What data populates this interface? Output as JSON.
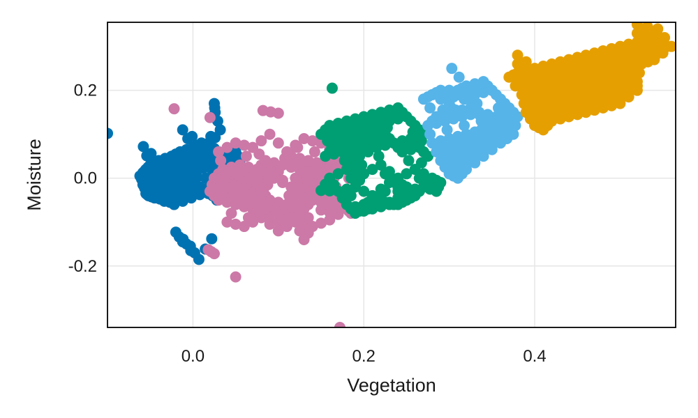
{
  "chart_data": {
    "type": "scatter",
    "title": "",
    "xlabel": "Vegetation",
    "ylabel": "Moisture",
    "xlim": [
      -0.1,
      0.565
    ],
    "ylim": [
      -0.34,
      0.355
    ],
    "xticks": [
      0.0,
      0.2,
      0.4
    ],
    "xtick_labels": [
      "0.0",
      "0.2",
      "0.4"
    ],
    "yticks": [
      -0.2,
      0.0,
      0.2
    ],
    "ytick_labels": [
      "-0.2",
      "0.0",
      "0.2"
    ],
    "grid": true,
    "legend": "none",
    "series": [
      {
        "color": "#0072b2",
        "x": [
          -0.062,
          -0.055,
          -0.05,
          -0.045,
          -0.04,
          -0.035,
          -0.03,
          -0.025,
          -0.02,
          -0.015,
          -0.01,
          -0.005,
          0.0,
          0.005,
          0.01,
          0.015,
          0.02,
          0.025,
          0.03,
          0.035,
          0.04,
          0.045,
          0.05,
          0.055,
          -0.058,
          -0.048,
          -0.038,
          -0.028,
          -0.018,
          -0.008,
          0.002,
          0.012,
          0.022,
          0.032,
          0.042,
          -0.052,
          -0.042,
          -0.032,
          -0.022,
          -0.012,
          -0.002,
          0.008,
          0.018,
          0.028,
          0.038,
          -0.1,
          -0.058,
          -0.012,
          0.025,
          0.026,
          0.032,
          -0.02,
          -0.012,
          -0.003,
          0.007,
          0.022,
          -0.045,
          -0.055
        ],
        "y": [
          0.005,
          0.02,
          0.03,
          0.01,
          0.04,
          0.0,
          0.035,
          0.05,
          0.02,
          0.06,
          0.045,
          0.03,
          0.07,
          0.05,
          0.08,
          0.06,
          0.075,
          0.04,
          0.06,
          0.03,
          0.045,
          0.02,
          0.06,
          0.04,
          -0.01,
          -0.02,
          -0.005,
          0.015,
          -0.01,
          0.0,
          0.025,
          0.045,
          0.02,
          0.005,
          0.03,
          -0.04,
          -0.03,
          -0.05,
          -0.06,
          -0.03,
          -0.045,
          -0.02,
          -0.03,
          -0.05,
          -0.025,
          0.102,
          0.072,
          0.11,
          0.17,
          0.15,
          0.11,
          -0.123,
          -0.145,
          -0.155,
          -0.185,
          -0.138,
          -0.045,
          -0.035
        ]
      },
      {
        "color": "#cc79a7",
        "x": [
          0.02,
          0.03,
          0.04,
          0.05,
          0.06,
          0.07,
          0.08,
          0.09,
          0.1,
          0.11,
          0.12,
          0.13,
          0.14,
          0.15,
          0.16,
          0.17,
          0.18,
          0.025,
          0.035,
          0.045,
          0.055,
          0.065,
          0.075,
          0.085,
          0.095,
          0.105,
          0.115,
          0.125,
          0.135,
          0.145,
          0.155,
          0.165,
          0.175,
          0.03,
          0.05,
          0.07,
          0.09,
          0.11,
          0.13,
          0.15,
          0.17,
          0.04,
          0.06,
          0.08,
          0.1,
          0.12,
          0.14,
          0.16,
          0.185,
          0.035,
          0.055,
          0.075,
          0.095,
          0.115,
          0.135,
          0.155,
          -0.022,
          0.02,
          0.082,
          0.1,
          0.05,
          0.172,
          0.13,
          0.018,
          0.025,
          0.19
        ],
        "y": [
          -0.03,
          -0.05,
          -0.02,
          -0.06,
          -0.04,
          -0.07,
          -0.03,
          -0.05,
          -0.08,
          -0.06,
          -0.04,
          -0.07,
          -0.05,
          -0.03,
          -0.06,
          -0.04,
          -0.07,
          0.0,
          0.02,
          0.01,
          0.03,
          0.0,
          0.02,
          0.04,
          0.01,
          0.03,
          0.05,
          0.02,
          0.04,
          0.01,
          0.03,
          0.0,
          0.02,
          0.06,
          0.08,
          0.07,
          0.1,
          0.06,
          0.09,
          0.08,
          0.05,
          -0.1,
          -0.11,
          -0.09,
          -0.12,
          -0.1,
          -0.11,
          -0.095,
          -0.08,
          -0.015,
          -0.025,
          -0.01,
          0.0,
          -0.02,
          -0.01,
          0.005,
          0.158,
          0.138,
          0.154,
          0.148,
          -0.225,
          -0.34,
          -0.14,
          -0.163,
          -0.172,
          -0.02
        ]
      },
      {
        "color": "#009e73",
        "x": [
          0.15,
          0.16,
          0.17,
          0.18,
          0.19,
          0.2,
          0.21,
          0.22,
          0.23,
          0.24,
          0.25,
          0.26,
          0.27,
          0.155,
          0.165,
          0.175,
          0.185,
          0.195,
          0.205,
          0.215,
          0.225,
          0.235,
          0.245,
          0.255,
          0.265,
          0.275,
          0.16,
          0.18,
          0.2,
          0.22,
          0.24,
          0.26,
          0.28,
          0.29,
          0.17,
          0.19,
          0.21,
          0.23,
          0.25,
          0.27,
          0.285,
          0.18,
          0.2,
          0.22,
          0.24,
          0.26,
          0.19,
          0.21,
          0.23,
          0.25,
          0.163,
          0.15,
          0.322
        ],
        "y": [
          0.1,
          0.12,
          0.09,
          0.13,
          0.11,
          0.14,
          0.12,
          0.15,
          0.13,
          0.16,
          0.14,
          0.12,
          0.1,
          0.05,
          0.07,
          0.06,
          0.08,
          0.05,
          0.09,
          0.07,
          0.1,
          0.08,
          0.06,
          0.09,
          0.07,
          0.05,
          0.0,
          0.02,
          0.01,
          0.03,
          0.0,
          0.02,
          0.0,
          -0.01,
          -0.03,
          -0.02,
          -0.04,
          -0.01,
          -0.03,
          -0.02,
          -0.03,
          -0.06,
          -0.07,
          -0.05,
          -0.06,
          -0.04,
          -0.08,
          -0.07,
          -0.06,
          -0.05,
          0.205,
          -0.028,
          0.057
        ]
      },
      {
        "color": "#56b4e9",
        "x": [
          0.27,
          0.28,
          0.29,
          0.3,
          0.31,
          0.32,
          0.33,
          0.34,
          0.35,
          0.36,
          0.37,
          0.38,
          0.275,
          0.285,
          0.295,
          0.305,
          0.315,
          0.325,
          0.335,
          0.345,
          0.355,
          0.365,
          0.375,
          0.28,
          0.29,
          0.3,
          0.31,
          0.32,
          0.33,
          0.34,
          0.35,
          0.36,
          0.29,
          0.3,
          0.31,
          0.32,
          0.33,
          0.34,
          0.3,
          0.31,
          0.32,
          0.303
        ],
        "y": [
          0.18,
          0.19,
          0.2,
          0.17,
          0.2,
          0.21,
          0.19,
          0.22,
          0.2,
          0.18,
          0.16,
          0.14,
          0.12,
          0.14,
          0.13,
          0.15,
          0.14,
          0.16,
          0.15,
          0.13,
          0.14,
          0.12,
          0.1,
          0.08,
          0.07,
          0.09,
          0.08,
          0.1,
          0.09,
          0.11,
          0.09,
          0.08,
          0.04,
          0.03,
          0.05,
          0.04,
          0.06,
          0.05,
          0.01,
          0.0,
          0.02,
          0.25
        ]
      },
      {
        "color": "#e69f00",
        "x": [
          0.37,
          0.38,
          0.39,
          0.4,
          0.41,
          0.42,
          0.43,
          0.44,
          0.45,
          0.46,
          0.47,
          0.48,
          0.49,
          0.5,
          0.51,
          0.52,
          0.53,
          0.54,
          0.55,
          0.385,
          0.395,
          0.405,
          0.415,
          0.425,
          0.435,
          0.445,
          0.455,
          0.465,
          0.475,
          0.485,
          0.495,
          0.505,
          0.515,
          0.525,
          0.39,
          0.4,
          0.41,
          0.42,
          0.43,
          0.44,
          0.45,
          0.46,
          0.47,
          0.48,
          0.49,
          0.5,
          0.4,
          0.42,
          0.44,
          0.46,
          0.48,
          0.5,
          0.52,
          0.54,
          0.56,
          0.38,
          0.41,
          0.52,
          0.544,
          0.52
        ],
        "y": [
          0.23,
          0.24,
          0.22,
          0.25,
          0.23,
          0.26,
          0.24,
          0.27,
          0.25,
          0.28,
          0.26,
          0.29,
          0.27,
          0.3,
          0.28,
          0.31,
          0.29,
          0.32,
          0.3,
          0.19,
          0.17,
          0.2,
          0.18,
          0.21,
          0.19,
          0.22,
          0.2,
          0.23,
          0.21,
          0.24,
          0.22,
          0.25,
          0.23,
          0.26,
          0.15,
          0.14,
          0.16,
          0.15,
          0.17,
          0.16,
          0.18,
          0.17,
          0.19,
          0.18,
          0.2,
          0.19,
          0.12,
          0.13,
          0.14,
          0.15,
          0.16,
          0.17,
          0.2,
          0.27,
          0.3,
          0.28,
          0.11,
          0.35,
          0.34,
          0.22
        ]
      }
    ]
  }
}
